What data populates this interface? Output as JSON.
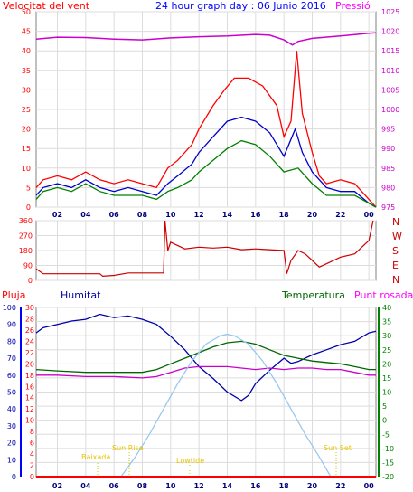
{
  "chart_data": [
    {
      "type": "line",
      "panel": "wind-pressure",
      "title": "24 hour graph day : 06 Junio 2016",
      "left_label": "Velocitat del vent",
      "right_label": "Pressió",
      "y_left_ticks": [
        "0",
        "5",
        "10",
        "15",
        "20",
        "25",
        "30",
        "35",
        "40",
        "45",
        "50"
      ],
      "y_left_range": [
        0,
        50
      ],
      "y_right_ticks": [
        "975",
        "980",
        "985",
        "990",
        "995",
        "1000",
        "1005",
        "1010",
        "1015",
        "1020",
        "1025"
      ],
      "y_right_range": [
        975,
        1025
      ],
      "x_ticks": [
        "02",
        "04",
        "06",
        "08",
        "10",
        "12",
        "14",
        "16",
        "18",
        "20",
        "22",
        "00"
      ],
      "x_range_hours": [
        0.5,
        24.5
      ],
      "series": [
        {
          "role": "wind-gust",
          "color": "#ff0000",
          "points": [
            [
              0.5,
              5
            ],
            [
              1,
              7
            ],
            [
              2,
              8
            ],
            [
              3,
              7
            ],
            [
              4,
              9
            ],
            [
              5,
              7
            ],
            [
              6,
              6
            ],
            [
              7,
              7
            ],
            [
              8,
              6
            ],
            [
              9,
              5
            ],
            [
              9.8,
              10
            ],
            [
              10.5,
              12
            ],
            [
              11.5,
              16
            ],
            [
              12,
              20
            ],
            [
              13,
              26
            ],
            [
              13.8,
              30
            ],
            [
              14.5,
              33
            ],
            [
              15.5,
              33
            ],
            [
              16.5,
              31
            ],
            [
              17.5,
              26
            ],
            [
              18,
              18
            ],
            [
              18.5,
              22
            ],
            [
              18.9,
              40
            ],
            [
              19.3,
              24
            ],
            [
              20,
              14
            ],
            [
              20.5,
              8
            ],
            [
              21,
              6
            ],
            [
              22,
              7
            ],
            [
              23,
              6
            ],
            [
              24,
              2
            ],
            [
              24.5,
              0
            ]
          ]
        },
        {
          "role": "wind-avg",
          "color": "#0000cc",
          "points": [
            [
              0.5,
              3
            ],
            [
              1,
              5
            ],
            [
              2,
              6
            ],
            [
              3,
              5
            ],
            [
              4,
              7
            ],
            [
              5,
              5
            ],
            [
              6,
              4
            ],
            [
              7,
              5
            ],
            [
              8,
              4
            ],
            [
              9,
              3
            ],
            [
              9.8,
              6
            ],
            [
              10.5,
              8
            ],
            [
              11.5,
              11
            ],
            [
              12,
              14
            ],
            [
              13,
              18
            ],
            [
              14,
              22
            ],
            [
              15,
              23
            ],
            [
              16,
              22
            ],
            [
              17,
              19
            ],
            [
              18,
              13
            ],
            [
              18.8,
              20
            ],
            [
              19.3,
              14
            ],
            [
              20,
              9
            ],
            [
              21,
              5
            ],
            [
              22,
              4
            ],
            [
              23,
              4
            ],
            [
              24,
              1
            ],
            [
              24.5,
              0
            ]
          ]
        },
        {
          "role": "wind-min",
          "color": "#008000",
          "points": [
            [
              0.5,
              2
            ],
            [
              1,
              4
            ],
            [
              2,
              5
            ],
            [
              3,
              4
            ],
            [
              4,
              6
            ],
            [
              5,
              4
            ],
            [
              6,
              3
            ],
            [
              7,
              3
            ],
            [
              8,
              3
            ],
            [
              9,
              2
            ],
            [
              9.8,
              4
            ],
            [
              10.5,
              5
            ],
            [
              11.5,
              7
            ],
            [
              12,
              9
            ],
            [
              13,
              12
            ],
            [
              14,
              15
            ],
            [
              15,
              17
            ],
            [
              16,
              16
            ],
            [
              17,
              13
            ],
            [
              18,
              9
            ],
            [
              19,
              10
            ],
            [
              20,
              6
            ],
            [
              21,
              3
            ],
            [
              22,
              3
            ],
            [
              23,
              3
            ],
            [
              24,
              1
            ],
            [
              24.5,
              0
            ]
          ]
        },
        {
          "role": "pressure",
          "color": "#cc00cc",
          "points": [
            [
              0.5,
              1018
            ],
            [
              2,
              1018.5
            ],
            [
              4,
              1018.4
            ],
            [
              6,
              1018
            ],
            [
              8,
              1017.8
            ],
            [
              10,
              1018.3
            ],
            [
              12,
              1018.6
            ],
            [
              14,
              1018.8
            ],
            [
              16,
              1019.2
            ],
            [
              17,
              1019
            ],
            [
              18,
              1017.8
            ],
            [
              18.6,
              1016.5
            ],
            [
              19,
              1017.4
            ],
            [
              20,
              1018.2
            ],
            [
              22,
              1018.8
            ],
            [
              24,
              1019.5
            ],
            [
              24.5,
              1019.6
            ]
          ]
        }
      ]
    },
    {
      "type": "line",
      "panel": "wind-direction",
      "y_ticks": [
        "0",
        "90",
        "180",
        "270",
        "360"
      ],
      "y_range": [
        0,
        360
      ],
      "right_labels": [
        "N",
        "W",
        "S",
        "E",
        "N"
      ],
      "x_range_hours": [
        0.5,
        24.5
      ],
      "series": [
        {
          "role": "direction",
          "color": "#cc0000",
          "points": [
            [
              0.5,
              70
            ],
            [
              1,
              40
            ],
            [
              3,
              40
            ],
            [
              5,
              40
            ],
            [
              5.2,
              25
            ],
            [
              6,
              30
            ],
            [
              7,
              45
            ],
            [
              8.5,
              45
            ],
            [
              9.5,
              45
            ],
            [
              9.6,
              360
            ],
            [
              9.8,
              180
            ],
            [
              10,
              230
            ],
            [
              11,
              190
            ],
            [
              12,
              200
            ],
            [
              13,
              195
            ],
            [
              14,
              200
            ],
            [
              15,
              185
            ],
            [
              16,
              190
            ],
            [
              17,
              185
            ],
            [
              18,
              180
            ],
            [
              18.2,
              40
            ],
            [
              18.5,
              120
            ],
            [
              19,
              180
            ],
            [
              19.5,
              160
            ],
            [
              20,
              120
            ],
            [
              20.5,
              80
            ],
            [
              21,
              100
            ],
            [
              22,
              140
            ],
            [
              23,
              160
            ],
            [
              24,
              240
            ],
            [
              24.3,
              360
            ]
          ]
        }
      ]
    },
    {
      "type": "line",
      "panel": "rain-humidity-temperature",
      "label_rain": "Pluja",
      "label_humidity": "Humitat",
      "label_temperature": "Temperatura",
      "label_dewpoint": "Punt rosada",
      "y_humidity_ticks": [
        "0",
        "10",
        "20",
        "30",
        "40",
        "50",
        "60",
        "70",
        "80",
        "90",
        "100"
      ],
      "y_humidity_range": [
        0,
        100
      ],
      "y_rain_ticks": [
        "0",
        "2",
        "4",
        "6",
        "8",
        "10",
        "12",
        "14",
        "16",
        "18",
        "20",
        "22",
        "24",
        "26",
        "28",
        "30"
      ],
      "y_rain_range": [
        0,
        30
      ],
      "y_temp_ticks": [
        "-20",
        "-15",
        "-10",
        "-5",
        "0",
        "5",
        "10",
        "15",
        "20",
        "25",
        "30",
        "35",
        "40"
      ],
      "y_temp_range": [
        -20,
        40
      ],
      "x_ticks": [
        "02",
        "04",
        "06",
        "08",
        "10",
        "12",
        "14",
        "16",
        "18",
        "20",
        "22",
        "00"
      ],
      "x_range_hours": [
        0.5,
        24.5
      ],
      "annotations": [
        "Baixada",
        "Sun Rise",
        "Lowtide",
        "Sun Set"
      ],
      "series": [
        {
          "role": "humidity",
          "color": "#0000aa",
          "points": [
            [
              0.5,
              85
            ],
            [
              1,
              88
            ],
            [
              2,
              90
            ],
            [
              3,
              92
            ],
            [
              4,
              93
            ],
            [
              5,
              96
            ],
            [
              6,
              94
            ],
            [
              7,
              95
            ],
            [
              8,
              93
            ],
            [
              9,
              90
            ],
            [
              10,
              83
            ],
            [
              11,
              75
            ],
            [
              12,
              65
            ],
            [
              13,
              58
            ],
            [
              14,
              50
            ],
            [
              15,
              45
            ],
            [
              15.5,
              48
            ],
            [
              16,
              55
            ],
            [
              17,
              63
            ],
            [
              18,
              70
            ],
            [
              18.5,
              67
            ],
            [
              19,
              68
            ],
            [
              20,
              72
            ],
            [
              21,
              75
            ],
            [
              22,
              78
            ],
            [
              23,
              80
            ],
            [
              24,
              85
            ],
            [
              24.5,
              86
            ]
          ]
        },
        {
          "role": "temperature",
          "color": "#006600",
          "points": [
            [
              0.5,
              18
            ],
            [
              2,
              17.5
            ],
            [
              4,
              17
            ],
            [
              6,
              17
            ],
            [
              8,
              17
            ],
            [
              9,
              18
            ],
            [
              10,
              20
            ],
            [
              11,
              22
            ],
            [
              12,
              24
            ],
            [
              13,
              26
            ],
            [
              14,
              27.5
            ],
            [
              15,
              28
            ],
            [
              16,
              27
            ],
            [
              17,
              25
            ],
            [
              18,
              23
            ],
            [
              19,
              22
            ],
            [
              20,
              21
            ],
            [
              21,
              20.5
            ],
            [
              22,
              20
            ],
            [
              23,
              19
            ],
            [
              24,
              18
            ],
            [
              24.5,
              18
            ]
          ]
        },
        {
          "role": "dewpoint",
          "color": "#cc00cc",
          "points": [
            [
              0.5,
              16
            ],
            [
              2,
              16
            ],
            [
              4,
              15.5
            ],
            [
              6,
              15.5
            ],
            [
              8,
              15
            ],
            [
              9,
              15.5
            ],
            [
              10,
              17
            ],
            [
              11,
              18.5
            ],
            [
              12,
              19
            ],
            [
              13,
              19
            ],
            [
              14,
              19
            ],
            [
              15,
              18.5
            ],
            [
              16,
              18
            ],
            [
              17,
              18.5
            ],
            [
              18,
              18
            ],
            [
              19,
              18.5
            ],
            [
              20,
              18.5
            ],
            [
              21,
              18
            ],
            [
              22,
              18
            ],
            [
              23,
              17
            ],
            [
              24,
              16
            ],
            [
              24.5,
              16
            ]
          ]
        },
        {
          "role": "solar",
          "color": "#99c8ee",
          "points": [
            [
              6.5,
              -20
            ],
            [
              7.5,
              -13
            ],
            [
              8.5,
              -5
            ],
            [
              9.5,
              4
            ],
            [
              10.5,
              13
            ],
            [
              11.5,
              21
            ],
            [
              12.5,
              27
            ],
            [
              13.5,
              30
            ],
            [
              14,
              30.5
            ],
            [
              14.5,
              30
            ],
            [
              15.5,
              27
            ],
            [
              16.5,
              21
            ],
            [
              17.5,
              13
            ],
            [
              18.5,
              4
            ],
            [
              19.5,
              -5
            ],
            [
              20.5,
              -13
            ],
            [
              21.3,
              -20
            ]
          ]
        },
        {
          "role": "rain",
          "color": "#ff0000",
          "points": [
            [
              0.5,
              0
            ],
            [
              24.5,
              0
            ]
          ]
        }
      ]
    }
  ]
}
